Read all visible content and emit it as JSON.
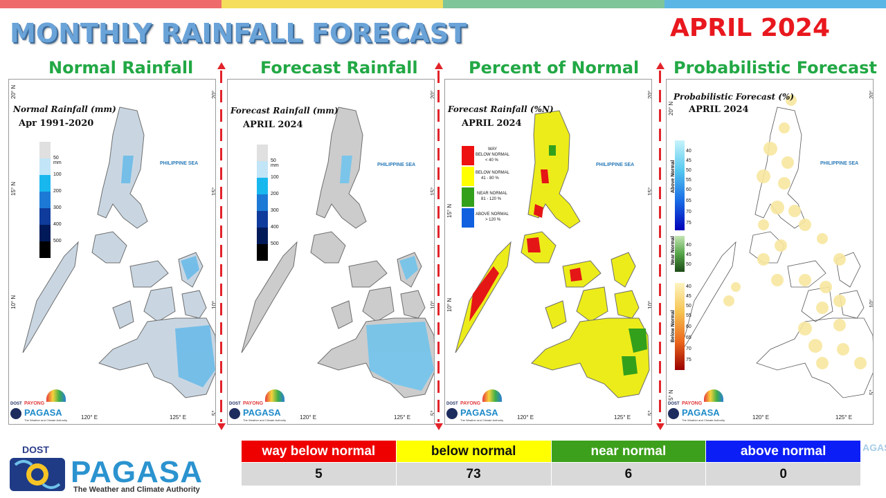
{
  "header": {
    "title": "MONTHLY RAINFALL FORECAST",
    "month": "APRIL 2024",
    "strip_colors": [
      "#ef6b6b",
      "#f4de5c",
      "#7fc59a",
      "#5bb6e6"
    ]
  },
  "panels": [
    {
      "heading": "Normal Rainfall",
      "map_title": "Normal Rainfall (mm)",
      "map_sub": "Apr 1991-2020",
      "legend": [
        "50 mm",
        "100",
        "200",
        "300",
        "400",
        "500"
      ],
      "legend_colors": [
        "#e0e0e0",
        "#c2e5f7",
        "#18b8ef",
        "#1c7ad6",
        "#0f3c9c",
        "#001a59",
        "#000000"
      ],
      "sea_label": "PHILIPPINE SEA"
    },
    {
      "heading": "Forecast Rainfall",
      "map_title": "Forecast Rainfall (mm)",
      "map_sub": "APRIL 2024",
      "legend": [
        "50 mm",
        "100",
        "200",
        "300",
        "400",
        "500"
      ],
      "legend_colors": [
        "#e0e0e0",
        "#c2e5f7",
        "#18b8ef",
        "#1c7ad6",
        "#0f3c9c",
        "#001a59",
        "#000000"
      ],
      "sea_label": "PHILIPPINE SEA"
    },
    {
      "heading": "Percent of Normal",
      "map_title": "Forecast Rainfall (%N)",
      "map_sub": "APRIL 2024",
      "legend": [
        {
          "l1": "WAY",
          "l2": "BELOW NORMAL",
          "l3": "< 40 %",
          "color": "#ee1111"
        },
        {
          "l1": "",
          "l2": "BELOW NORMAL",
          "l3": "41 - 80 %",
          "color": "#ffff00"
        },
        {
          "l1": "",
          "l2": "NEAR NORMAL",
          "l3": "81 - 120 %",
          "color": "#33a01c"
        },
        {
          "l1": "",
          "l2": "ABOVE NORMAL",
          "l3": "> 120 %",
          "color": "#1060e0"
        }
      ],
      "sea_label": "PHILIPPINE SEA"
    },
    {
      "heading": "Probabilistic Forecast",
      "map_title": "Probabilistic Forecast (%)",
      "map_sub": "APRIL 2024",
      "legend_above": {
        "label": "Above Normal",
        "ticks": [
          "40",
          "45",
          "50",
          "55",
          "60",
          "65",
          "70",
          "75"
        ]
      },
      "legend_near": {
        "label": "Near Normal",
        "ticks": [
          "40",
          "45",
          "50"
        ]
      },
      "legend_below": {
        "label": "Below Normal",
        "ticks": [
          "40",
          "45",
          "50",
          "55",
          "60",
          "65",
          "70",
          "75"
        ]
      },
      "sea_label": "PHILIPPINE SEA"
    }
  ],
  "axes": {
    "lat": [
      "20° N",
      "15° N",
      "10° N",
      "5° N"
    ],
    "lon": [
      "120° E",
      "125° E"
    ]
  },
  "mini_logo": {
    "dost": "DOST",
    "payong": "PAYONG",
    "pagasa": "PAGASA",
    "tagline": "The Weather and Climate Authority"
  },
  "footer_logo": {
    "dost": "DOST",
    "pagasa": "PAGASA",
    "tagline": "The Weather and Climate Authority"
  },
  "summary": {
    "headers": [
      "way below normal",
      "below normal",
      "near normal",
      "above normal"
    ],
    "values": [
      "5",
      "73",
      "6",
      "0"
    ],
    "colors": [
      "#ee0000",
      "#ffff00",
      "#3da01c",
      "#0b1ef5"
    ]
  },
  "ghost_text": "AGASA"
}
